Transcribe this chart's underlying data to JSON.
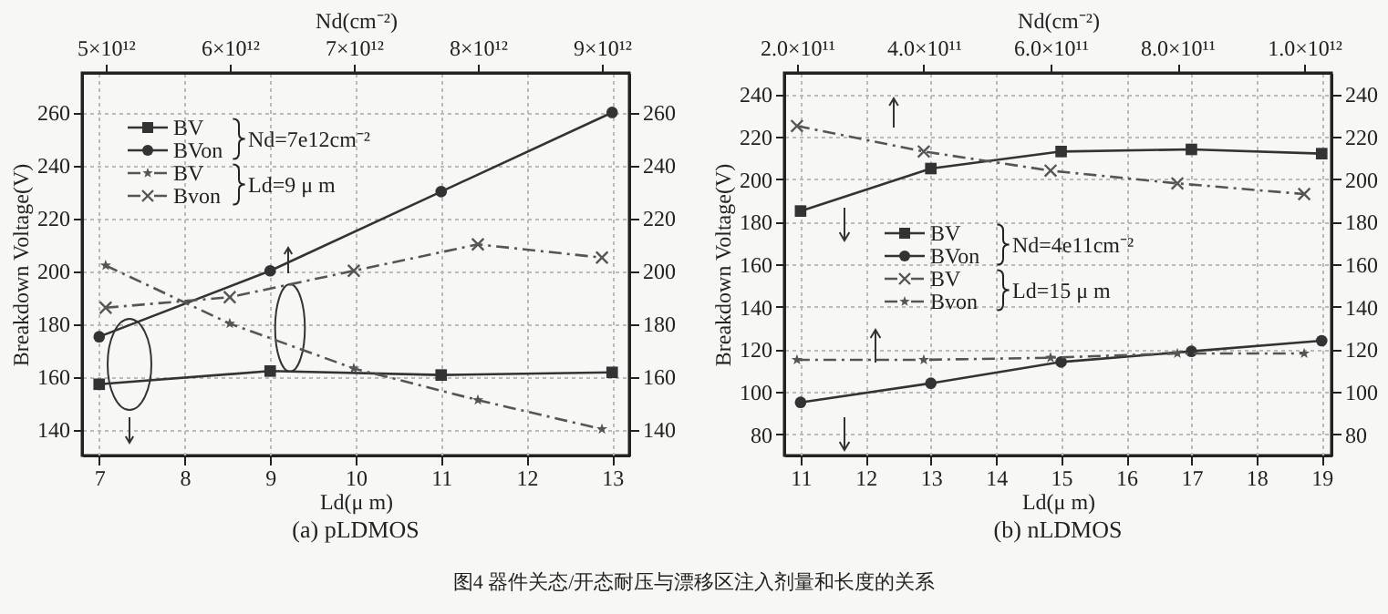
{
  "chart_data": [
    {
      "type": "line",
      "title": "(a) pLDMOS",
      "xlabel": "Ld(μ m)",
      "x2label": "Nd(cm⁻²)",
      "ylabel": "Breakdown Voltage(V)",
      "xlim": [
        6.8,
        13.2
      ],
      "xticks": [
        7,
        8,
        9,
        10,
        11,
        12,
        13
      ],
      "x2lim": [
        4810000000000.0,
        9220000000000.0
      ],
      "x2ticks": [
        {
          "value": 5000000000000.0,
          "label": "5×10¹²"
        },
        {
          "value": 6000000000000.0,
          "label": "6×10¹²"
        },
        {
          "value": 7000000000000.0,
          "label": "7×10¹²"
        },
        {
          "value": 8000000000000.0,
          "label": "8×10¹²"
        },
        {
          "value": 9000000000000.0,
          "label": "9×10¹²"
        }
      ],
      "ylim": [
        130,
        275
      ],
      "yticks": [
        140,
        160,
        180,
        200,
        220,
        240,
        260
      ],
      "y2lim": [
        130,
        275
      ],
      "y2ticks": [
        140,
        160,
        180,
        200,
        220,
        240,
        260
      ],
      "grid": true,
      "legend": "top left",
      "annotations": [
        "Nd=7e12cm⁻²",
        "Ld=9 μ m"
      ],
      "series": [
        {
          "name": "BV",
          "color": "#333333",
          "marker": "square",
          "line_style": "solid",
          "x": [
            7,
            9,
            11,
            13
          ],
          "values": [
            157,
            162,
            160.5,
            161.5
          ]
        },
        {
          "name": "BVon",
          "color": "#333333",
          "marker": "circle",
          "line_style": "solid",
          "x": [
            7,
            9,
            11,
            13
          ],
          "values": [
            175,
            200,
            230,
            260
          ]
        },
        {
          "name": "BV",
          "color": "#555555",
          "marker": "star",
          "line_style": "dashed",
          "axis": "x2",
          "x": [
            5000000000000.0,
            6000000000000.0,
            7000000000000.0,
            8000000000000.0,
            9000000000000.0
          ],
          "values": [
            202,
            180,
            163,
            151,
            140
          ]
        },
        {
          "name": "Bvon",
          "color": "#555555",
          "marker": "cross",
          "line_style": "dashed",
          "axis": "x2",
          "x": [
            5000000000000.0,
            6000000000000.0,
            7000000000000.0,
            8000000000000.0,
            9000000000000.0
          ],
          "values": [
            186,
            190,
            200,
            210,
            205
          ]
        }
      ]
    },
    {
      "type": "line",
      "title": "(b) nLDMOS",
      "xlabel": "Ld(μ m)",
      "x2label": "Nd(cm⁻²)",
      "ylabel": "Breakdown Voltage(V)",
      "xlim": [
        10.75,
        19.15
      ],
      "xticks": [
        11,
        12,
        13,
        14,
        15,
        16,
        17,
        18,
        19
      ],
      "x2lim": [
        180000000000.0,
        1043000000000.0
      ],
      "x2ticks": [
        {
          "value": 200000000000.0,
          "label": "2.0×10¹¹"
        },
        {
          "value": 400000000000.0,
          "label": "4.0×10¹¹"
        },
        {
          "value": 600000000000.0,
          "label": "6.0×10¹¹"
        },
        {
          "value": 800000000000.0,
          "label": "8.0×10¹¹"
        },
        {
          "value": 1000000000000.0,
          "label": "1.0×10¹²"
        }
      ],
      "ylim": [
        70,
        250
      ],
      "yticks": [
        80,
        100,
        120,
        140,
        160,
        180,
        200,
        220,
        240
      ],
      "y2lim": [
        70,
        250
      ],
      "y2ticks": [
        80,
        100,
        120,
        140,
        160,
        180,
        200,
        220,
        240
      ],
      "grid": true,
      "legend": "left",
      "annotations": [
        "Nd=4e11cm⁻²",
        "Ld=15 μ m",
        "图4  器件关态/开态耐压与漂移区注入剂量和长度的关系"
      ],
      "series": [
        {
          "name": "BV",
          "color": "#333333",
          "marker": "square",
          "line_style": "solid",
          "x": [
            11,
            13,
            15,
            17,
            19
          ],
          "values": [
            185,
            205,
            213,
            214,
            212
          ]
        },
        {
          "name": "BVon",
          "color": "#333333",
          "marker": "circle",
          "line_style": "solid",
          "x": [
            11,
            13,
            15,
            17,
            19
          ],
          "values": [
            95,
            104,
            114,
            119,
            124
          ]
        },
        {
          "name": "BV",
          "color": "#555555",
          "marker": "cross",
          "line_style": "dashed",
          "axis": "x2",
          "x": [
            200000000000.0,
            400000000000.0,
            600000000000.0,
            800000000000.0,
            1000000000000.0
          ],
          "values": [
            225,
            213,
            204,
            198,
            193
          ]
        },
        {
          "name": "Bvon",
          "color": "#555555",
          "marker": "star",
          "line_style": "dashed",
          "axis": "x2",
          "x": [
            200000000000.0,
            400000000000.0,
            600000000000.0,
            800000000000.0,
            1000000000000.0
          ],
          "values": [
            115,
            115,
            116,
            118,
            118
          ]
        }
      ]
    }
  ]
}
